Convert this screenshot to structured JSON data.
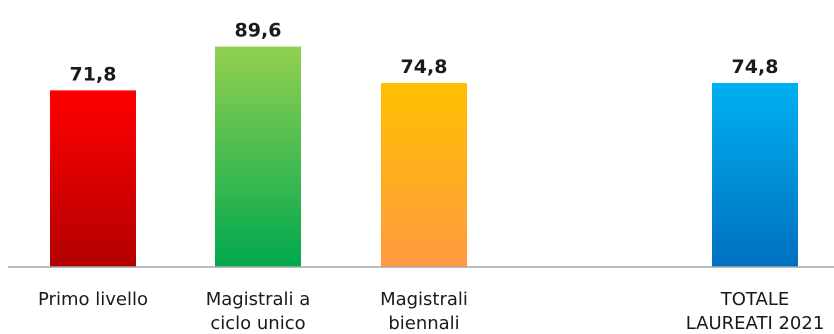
{
  "chart_data": {
    "type": "bar",
    "title": "",
    "xlabel": "",
    "ylabel": "",
    "ylim": [
      0,
      100
    ],
    "grid": false,
    "legend": "none",
    "categories": [
      [
        "Primo livello"
      ],
      [
        "Magistrali a",
        "ciclo unico"
      ],
      [
        "Magistrali",
        "biennali"
      ],
      [
        "TOTALE",
        "LAUREATI 2021"
      ]
    ],
    "values": [
      71.8,
      89.6,
      74.8,
      74.8
    ],
    "value_labels": [
      "71,8",
      "89,6",
      "74,8",
      "74,8"
    ],
    "colors": [
      {
        "top": "#ff0000",
        "bottom": "#b30000"
      },
      {
        "top": "#92d050",
        "bottom": "#00a84f"
      },
      {
        "top": "#ffc000",
        "bottom": "#ff9a40"
      },
      {
        "top": "#00b0f0",
        "bottom": "#0070c0"
      }
    ]
  }
}
